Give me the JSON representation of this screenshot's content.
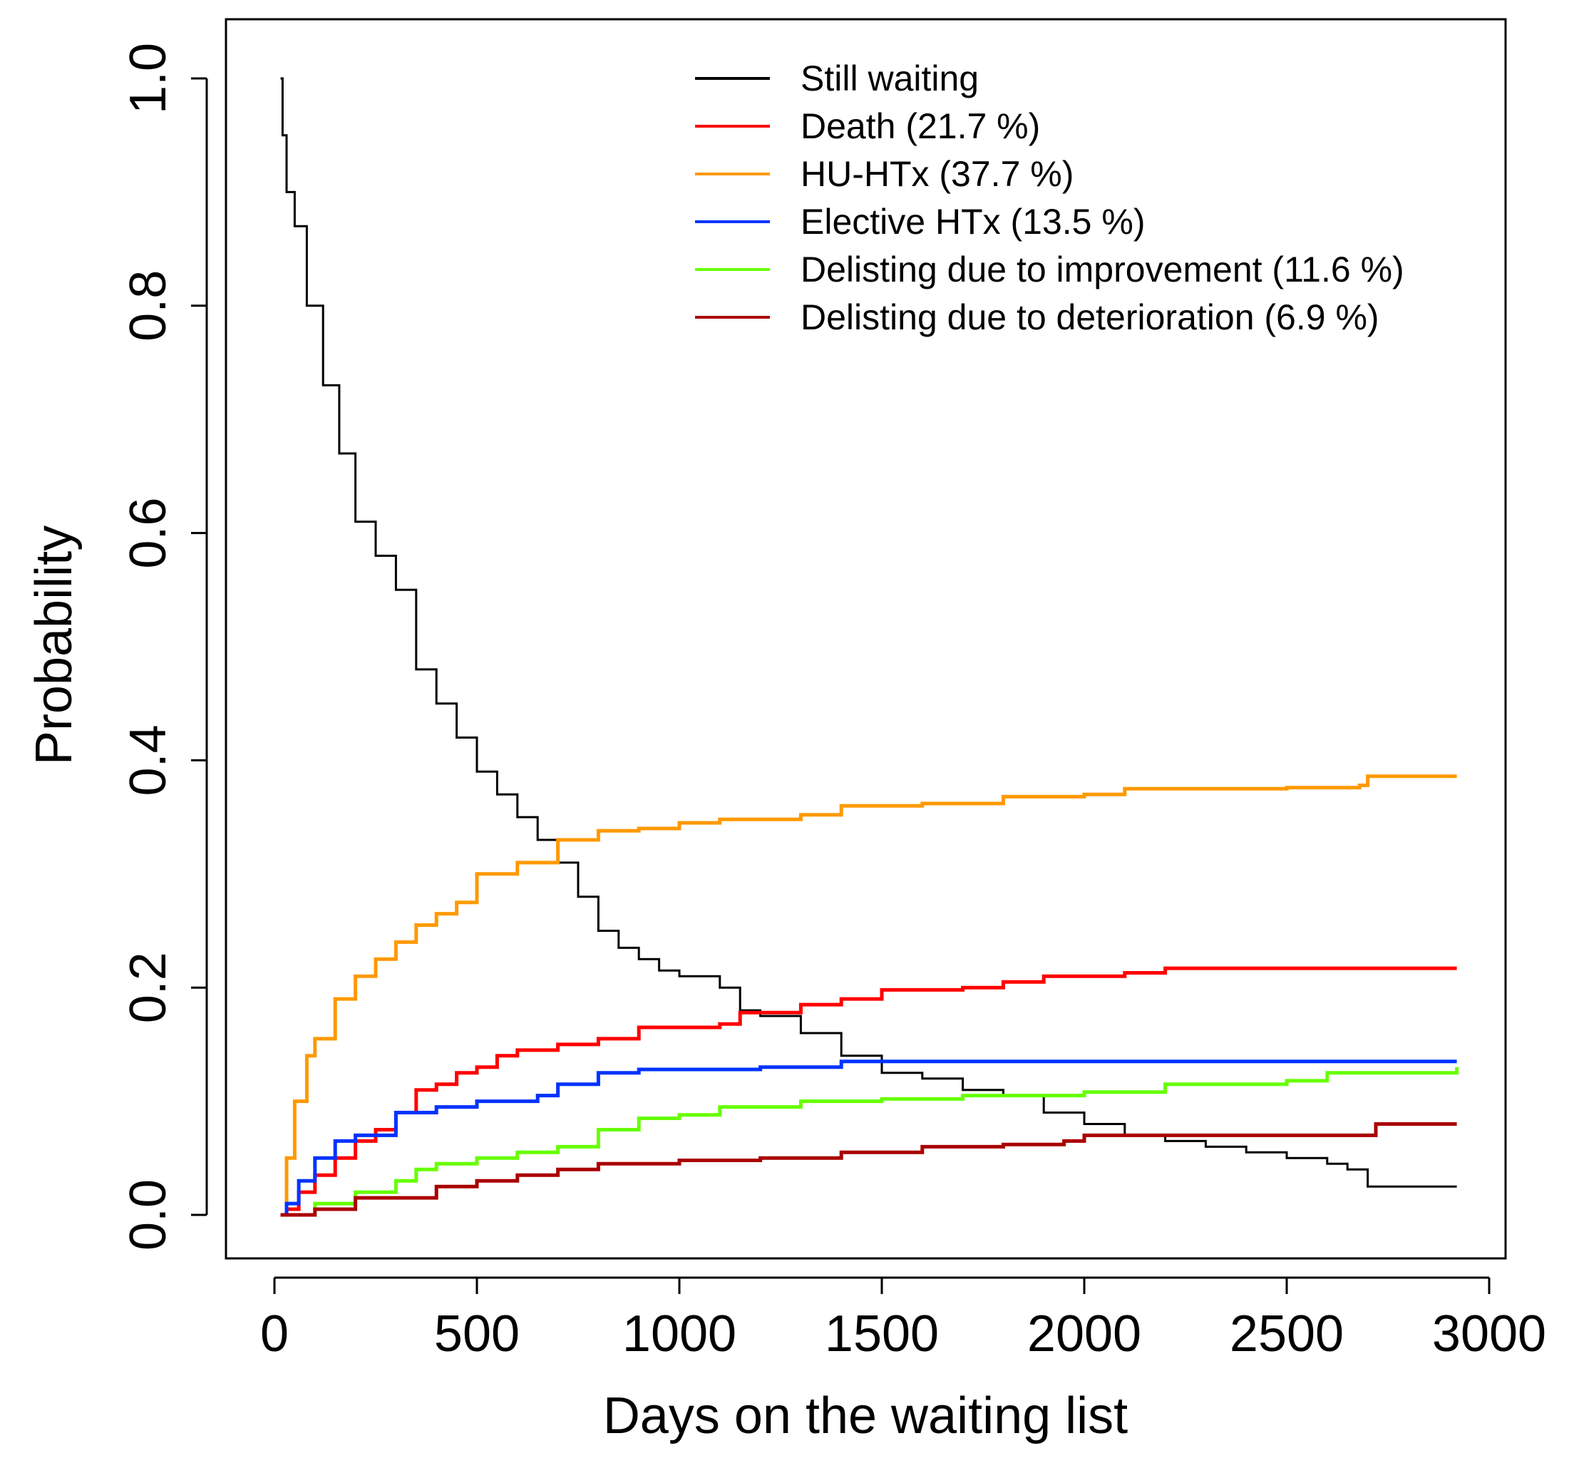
{
  "chart_data": {
    "type": "line",
    "xlabel": "Days on the waiting list",
    "ylabel": "Probability",
    "xlim": [
      0,
      3000
    ],
    "ylim": [
      0,
      1.0
    ],
    "x_ticks": [
      "0",
      "500",
      "1000",
      "1500",
      "2000",
      "2500",
      "3000"
    ],
    "y_ticks": [
      "0.0",
      "0.2",
      "0.4",
      "0.6",
      "0.8",
      "1.0"
    ],
    "x_tick_values": [
      0,
      500,
      1000,
      1500,
      2000,
      2500,
      3000
    ],
    "y_tick_values": [
      0,
      0.2,
      0.4,
      0.6,
      0.8,
      1.0
    ],
    "grid": false,
    "legend_position": "top-right",
    "series": [
      {
        "name": "Still waiting",
        "color": "#000000",
        "points": [
          [
            15,
            1.0
          ],
          [
            20,
            0.95
          ],
          [
            30,
            0.9
          ],
          [
            50,
            0.87
          ],
          [
            80,
            0.8
          ],
          [
            120,
            0.73
          ],
          [
            160,
            0.67
          ],
          [
            200,
            0.61
          ],
          [
            250,
            0.58
          ],
          [
            300,
            0.55
          ],
          [
            350,
            0.48
          ],
          [
            400,
            0.45
          ],
          [
            450,
            0.42
          ],
          [
            500,
            0.39
          ],
          [
            550,
            0.37
          ],
          [
            600,
            0.35
          ],
          [
            650,
            0.33
          ],
          [
            700,
            0.31
          ],
          [
            750,
            0.28
          ],
          [
            800,
            0.25
          ],
          [
            850,
            0.235
          ],
          [
            900,
            0.225
          ],
          [
            950,
            0.215
          ],
          [
            1000,
            0.21
          ],
          [
            1050,
            0.21
          ],
          [
            1100,
            0.2
          ],
          [
            1150,
            0.18
          ],
          [
            1200,
            0.175
          ],
          [
            1300,
            0.16
          ],
          [
            1400,
            0.14
          ],
          [
            1500,
            0.125
          ],
          [
            1600,
            0.12
          ],
          [
            1700,
            0.11
          ],
          [
            1800,
            0.105
          ],
          [
            1900,
            0.09
          ],
          [
            2000,
            0.08
          ],
          [
            2100,
            0.07
          ],
          [
            2200,
            0.065
          ],
          [
            2300,
            0.06
          ],
          [
            2400,
            0.055
          ],
          [
            2500,
            0.05
          ],
          [
            2600,
            0.045
          ],
          [
            2650,
            0.04
          ],
          [
            2700,
            0.025
          ],
          [
            2920,
            0.025
          ]
        ]
      },
      {
        "name": "Death  (21.7 %)",
        "color": "#ff0000",
        "points": [
          [
            15,
            0.0
          ],
          [
            30,
            0.005
          ],
          [
            60,
            0.02
          ],
          [
            100,
            0.035
          ],
          [
            150,
            0.05
          ],
          [
            200,
            0.065
          ],
          [
            250,
            0.075
          ],
          [
            300,
            0.09
          ],
          [
            350,
            0.11
          ],
          [
            400,
            0.115
          ],
          [
            450,
            0.125
          ],
          [
            500,
            0.13
          ],
          [
            550,
            0.14
          ],
          [
            600,
            0.145
          ],
          [
            700,
            0.15
          ],
          [
            800,
            0.155
          ],
          [
            900,
            0.165
          ],
          [
            1000,
            0.165
          ],
          [
            1100,
            0.168
          ],
          [
            1150,
            0.178
          ],
          [
            1300,
            0.185
          ],
          [
            1400,
            0.19
          ],
          [
            1500,
            0.198
          ],
          [
            1700,
            0.2
          ],
          [
            1800,
            0.205
          ],
          [
            1900,
            0.21
          ],
          [
            2000,
            0.21
          ],
          [
            2100,
            0.213
          ],
          [
            2200,
            0.217
          ],
          [
            2920,
            0.217
          ]
        ]
      },
      {
        "name": "HU-HTx  (37.7 %)",
        "color": "#ff9900",
        "points": [
          [
            15,
            0.0
          ],
          [
            30,
            0.05
          ],
          [
            50,
            0.1
          ],
          [
            80,
            0.14
          ],
          [
            100,
            0.155
          ],
          [
            150,
            0.19
          ],
          [
            200,
            0.21
          ],
          [
            250,
            0.225
          ],
          [
            300,
            0.24
          ],
          [
            350,
            0.255
          ],
          [
            400,
            0.265
          ],
          [
            450,
            0.275
          ],
          [
            500,
            0.3
          ],
          [
            600,
            0.31
          ],
          [
            700,
            0.33
          ],
          [
            800,
            0.338
          ],
          [
            900,
            0.34
          ],
          [
            1000,
            0.345
          ],
          [
            1100,
            0.348
          ],
          [
            1300,
            0.352
          ],
          [
            1400,
            0.36
          ],
          [
            1600,
            0.362
          ],
          [
            1800,
            0.368
          ],
          [
            2000,
            0.37
          ],
          [
            2100,
            0.375
          ],
          [
            2500,
            0.376
          ],
          [
            2680,
            0.378
          ],
          [
            2700,
            0.386
          ],
          [
            2920,
            0.386
          ]
        ]
      },
      {
        "name": "Elective HTx  (13.5 %)",
        "color": "#0033ff",
        "points": [
          [
            15,
            0.0
          ],
          [
            30,
            0.01
          ],
          [
            60,
            0.03
          ],
          [
            100,
            0.05
          ],
          [
            150,
            0.065
          ],
          [
            200,
            0.07
          ],
          [
            300,
            0.09
          ],
          [
            400,
            0.095
          ],
          [
            500,
            0.1
          ],
          [
            600,
            0.1
          ],
          [
            650,
            0.105
          ],
          [
            700,
            0.115
          ],
          [
            800,
            0.125
          ],
          [
            900,
            0.128
          ],
          [
            1200,
            0.13
          ],
          [
            1400,
            0.135
          ],
          [
            2920,
            0.135
          ]
        ]
      },
      {
        "name": "Delisting due to improvement  (11.6 %)",
        "color": "#66ff00",
        "points": [
          [
            15,
            0.0
          ],
          [
            100,
            0.01
          ],
          [
            200,
            0.02
          ],
          [
            300,
            0.03
          ],
          [
            350,
            0.04
          ],
          [
            400,
            0.045
          ],
          [
            500,
            0.05
          ],
          [
            600,
            0.055
          ],
          [
            700,
            0.06
          ],
          [
            800,
            0.075
          ],
          [
            900,
            0.085
          ],
          [
            1000,
            0.088
          ],
          [
            1100,
            0.095
          ],
          [
            1300,
            0.1
          ],
          [
            1500,
            0.102
          ],
          [
            1700,
            0.105
          ],
          [
            2000,
            0.108
          ],
          [
            2200,
            0.115
          ],
          [
            2500,
            0.118
          ],
          [
            2600,
            0.125
          ],
          [
            2920,
            0.13
          ]
        ]
      },
      {
        "name": "Delisting due to deterioration (6.9 %)",
        "color": "#aa0000",
        "points": [
          [
            15,
            0.0
          ],
          [
            80,
            0.0
          ],
          [
            100,
            0.005
          ],
          [
            200,
            0.015
          ],
          [
            400,
            0.025
          ],
          [
            500,
            0.03
          ],
          [
            600,
            0.035
          ],
          [
            700,
            0.04
          ],
          [
            800,
            0.045
          ],
          [
            1000,
            0.048
          ],
          [
            1200,
            0.05
          ],
          [
            1400,
            0.055
          ],
          [
            1600,
            0.06
          ],
          [
            1800,
            0.062
          ],
          [
            1950,
            0.065
          ],
          [
            2000,
            0.07
          ],
          [
            2500,
            0.07
          ],
          [
            2700,
            0.07
          ],
          [
            2720,
            0.08
          ],
          [
            2920,
            0.08
          ]
        ]
      }
    ]
  }
}
